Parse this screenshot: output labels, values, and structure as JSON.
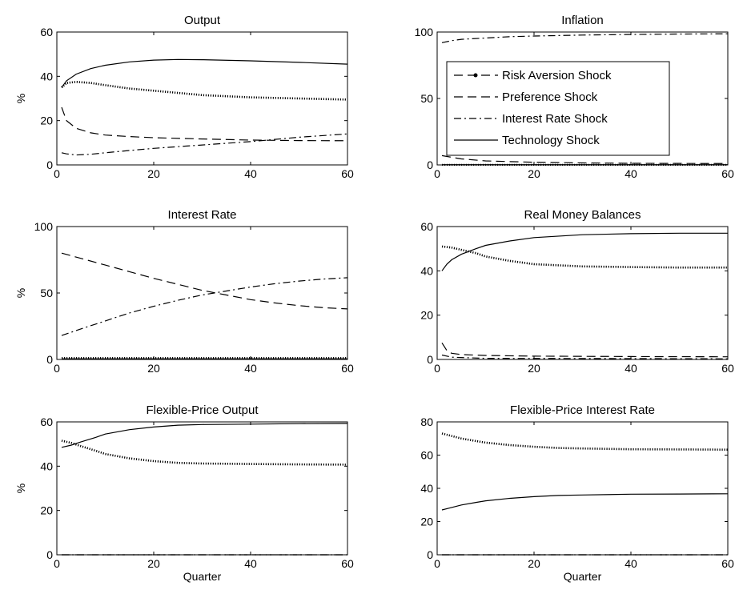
{
  "chart_data": [
    {
      "type": "line",
      "title": "Output",
      "ylabel": "%",
      "xlabel": "",
      "xlim": [
        0,
        60
      ],
      "ylim": [
        0,
        60
      ],
      "xticks": [
        0,
        20,
        40,
        60
      ],
      "yticks": [
        0,
        20,
        40,
        60
      ],
      "grid": false,
      "series": [
        {
          "name": "Risk Aversion Shock",
          "style": "dotted-marker",
          "x": [
            1,
            2,
            4,
            7,
            10,
            15,
            20,
            30,
            40,
            50,
            60
          ],
          "y": [
            35,
            37,
            37.5,
            37,
            36,
            34.5,
            33.5,
            31.5,
            30.5,
            30,
            29.5
          ]
        },
        {
          "name": "Preference Shock",
          "style": "dashed",
          "x": [
            1,
            2,
            4,
            7,
            10,
            15,
            20,
            30,
            40,
            50,
            60
          ],
          "y": [
            26,
            20,
            16.5,
            14.5,
            13.5,
            12.8,
            12.3,
            11.7,
            11.2,
            11,
            10.9
          ]
        },
        {
          "name": "Interest Rate Shock",
          "style": "dashdot",
          "x": [
            1,
            2,
            4,
            7,
            10,
            15,
            20,
            30,
            40,
            50,
            60
          ],
          "y": [
            5.5,
            5,
            4.5,
            4.8,
            5.5,
            6.5,
            7.5,
            9,
            10.5,
            12.5,
            14
          ]
        },
        {
          "name": "Technology Shock",
          "style": "solid",
          "x": [
            1,
            2,
            4,
            7,
            10,
            15,
            20,
            25,
            30,
            40,
            50,
            60
          ],
          "y": [
            35,
            38,
            41,
            43.5,
            45,
            46.5,
            47.3,
            47.6,
            47.5,
            47,
            46.3,
            45.5
          ]
        }
      ]
    },
    {
      "type": "line",
      "title": "Inflation",
      "ylabel": "",
      "xlabel": "",
      "xlim": [
        0,
        60
      ],
      "ylim": [
        0,
        100
      ],
      "xticks": [
        0,
        20,
        40,
        60
      ],
      "yticks": [
        0,
        50,
        100
      ],
      "grid": false,
      "legend": "inside-right",
      "series": [
        {
          "name": "Risk Aversion Shock",
          "style": "dotted-marker",
          "x": [
            1,
            60
          ],
          "y": [
            0,
            0
          ]
        },
        {
          "name": "Preference Shock",
          "style": "dashed",
          "x": [
            1,
            5,
            10,
            20,
            30,
            40,
            60
          ],
          "y": [
            7,
            4.5,
            3,
            2,
            1.5,
            1.2,
            1
          ]
        },
        {
          "name": "Interest Rate Shock",
          "style": "dashdot",
          "x": [
            1,
            3,
            5,
            10,
            15,
            20,
            30,
            40,
            50,
            60
          ],
          "y": [
            92,
            93.5,
            94.5,
            95.5,
            96.5,
            97,
            97.7,
            98.2,
            98.5,
            98.7
          ]
        },
        {
          "name": "Technology Shock",
          "style": "solid",
          "x": [
            1,
            60
          ],
          "y": [
            0.2,
            0.2
          ]
        }
      ]
    },
    {
      "type": "line",
      "title": "Interest Rate",
      "ylabel": "%",
      "xlabel": "",
      "xlim": [
        0,
        60
      ],
      "ylim": [
        0,
        100
      ],
      "xticks": [
        0,
        20,
        40,
        60
      ],
      "yticks": [
        0,
        50,
        100
      ],
      "grid": false,
      "series": [
        {
          "name": "Risk Aversion Shock",
          "style": "dotted-marker",
          "x": [
            1,
            60
          ],
          "y": [
            1,
            1
          ]
        },
        {
          "name": "Preference Shock",
          "style": "dashed",
          "x": [
            1,
            5,
            10,
            15,
            20,
            25,
            30,
            35,
            40,
            45,
            50,
            55,
            60
          ],
          "y": [
            80,
            76,
            71,
            66,
            61,
            56.5,
            52,
            48.5,
            45,
            42.5,
            40.5,
            39,
            38
          ]
        },
        {
          "name": "Interest Rate Shock",
          "style": "dashdot",
          "x": [
            1,
            5,
            10,
            15,
            20,
            25,
            30,
            35,
            40,
            45,
            50,
            55,
            60
          ],
          "y": [
            18,
            23,
            29,
            35,
            40,
            44.5,
            48.5,
            51.5,
            54.5,
            57,
            59,
            60.5,
            61.5
          ]
        },
        {
          "name": "Technology Shock",
          "style": "solid",
          "x": [
            1,
            60
          ],
          "y": [
            0.5,
            0.5
          ]
        }
      ]
    },
    {
      "type": "line",
      "title": "Real Money Balances",
      "ylabel": "",
      "xlabel": "",
      "xlim": [
        0,
        60
      ],
      "ylim": [
        0,
        60
      ],
      "xticks": [
        0,
        20,
        40,
        60
      ],
      "yticks": [
        0,
        20,
        40,
        60
      ],
      "grid": false,
      "series": [
        {
          "name": "Risk Aversion Shock",
          "style": "dotted-marker",
          "x": [
            1,
            3,
            5,
            8,
            10,
            15,
            20,
            30,
            40,
            50,
            60
          ],
          "y": [
            51,
            50.5,
            49.5,
            48,
            46.5,
            44.5,
            43,
            42,
            41.7,
            41.5,
            41.5
          ]
        },
        {
          "name": "Preference Shock",
          "style": "dashed",
          "x": [
            1,
            2,
            3,
            5,
            10,
            20,
            40,
            60
          ],
          "y": [
            7.5,
            4,
            2.8,
            2.2,
            1.8,
            1.5,
            1.3,
            1.2
          ]
        },
        {
          "name": "Interest Rate Shock",
          "style": "dashdot",
          "x": [
            1,
            3,
            10,
            60
          ],
          "y": [
            2,
            1,
            0.5,
            0.3
          ]
        },
        {
          "name": "Technology Shock",
          "style": "solid",
          "x": [
            1,
            2,
            3,
            5,
            8,
            10,
            15,
            20,
            30,
            40,
            50,
            60
          ],
          "y": [
            40,
            43,
            45,
            47.5,
            50,
            51.5,
            53.5,
            55,
            56.3,
            56.8,
            57,
            57
          ]
        }
      ]
    },
    {
      "type": "line",
      "title": "Flexible-Price Output",
      "ylabel": "%",
      "xlabel": "Quarter",
      "xlim": [
        0,
        60
      ],
      "ylim": [
        0,
        60
      ],
      "xticks": [
        0,
        20,
        40,
        60
      ],
      "yticks": [
        0,
        20,
        40,
        60
      ],
      "grid": false,
      "series": [
        {
          "name": "Risk Aversion Shock",
          "style": "dotted-marker",
          "x": [
            1,
            3,
            5,
            8,
            10,
            15,
            20,
            25,
            30,
            40,
            50,
            60
          ],
          "y": [
            51.5,
            50.5,
            49,
            47,
            45.5,
            43.5,
            42.3,
            41.5,
            41.2,
            41,
            40.8,
            40.7
          ]
        },
        {
          "name": "Preference Shock",
          "style": "dashed",
          "x": [
            1,
            60
          ],
          "y": [
            0,
            0
          ]
        },
        {
          "name": "Interest Rate Shock",
          "style": "dashdot",
          "x": [
            1,
            60
          ],
          "y": [
            0,
            0
          ]
        },
        {
          "name": "Technology Shock",
          "style": "solid",
          "x": [
            1,
            3,
            5,
            8,
            10,
            15,
            20,
            25,
            30,
            40,
            50,
            60
          ],
          "y": [
            48.5,
            49.5,
            51,
            53,
            54.5,
            56.5,
            57.7,
            58.5,
            58.8,
            59,
            59.2,
            59.3
          ]
        }
      ]
    },
    {
      "type": "line",
      "title": "Flexible-Price Interest Rate",
      "ylabel": "",
      "xlabel": "Quarter",
      "xlim": [
        0,
        60
      ],
      "ylim": [
        0,
        80
      ],
      "xticks": [
        0,
        20,
        40,
        60
      ],
      "yticks": [
        0,
        20,
        40,
        60,
        80
      ],
      "grid": false,
      "series": [
        {
          "name": "Risk Aversion Shock",
          "style": "dotted-marker",
          "x": [
            1,
            3,
            5,
            8,
            10,
            15,
            20,
            25,
            30,
            40,
            50,
            60
          ],
          "y": [
            73,
            71.5,
            70,
            68.5,
            67.5,
            66,
            65,
            64.3,
            64,
            63.5,
            63.4,
            63.3
          ]
        },
        {
          "name": "Preference Shock",
          "style": "dashed",
          "x": [
            1,
            60
          ],
          "y": [
            0,
            0
          ]
        },
        {
          "name": "Interest Rate Shock",
          "style": "dashdot",
          "x": [
            1,
            60
          ],
          "y": [
            0,
            0
          ]
        },
        {
          "name": "Technology Shock",
          "style": "solid",
          "x": [
            1,
            3,
            5,
            8,
            10,
            15,
            20,
            25,
            30,
            40,
            50,
            60
          ],
          "y": [
            27,
            28.5,
            30,
            31.5,
            32.5,
            34,
            35,
            35.7,
            36,
            36.5,
            36.6,
            36.7
          ]
        }
      ]
    }
  ]
}
